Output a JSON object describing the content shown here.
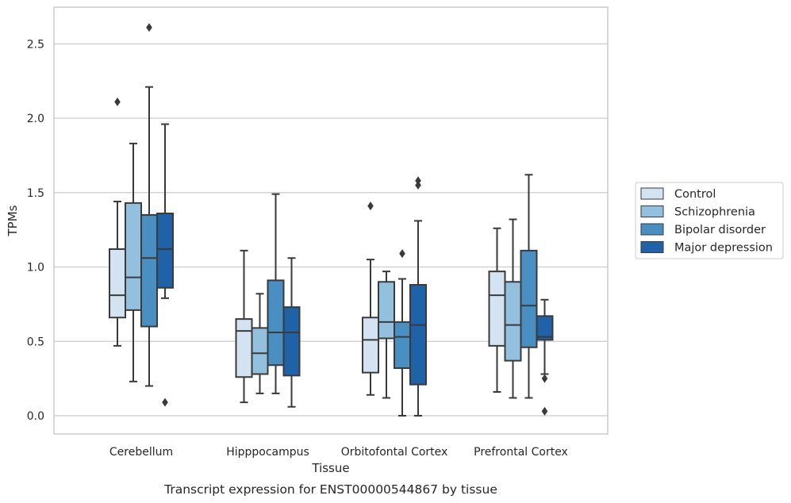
{
  "caption": "Transcript expression for ENST00000544867 by tissue",
  "chart_data": {
    "type": "box",
    "xlabel": "Tissue",
    "ylabel": "TPMs",
    "ylim": [
      -0.13,
      2.75
    ],
    "yticks": [
      0.0,
      0.5,
      1.0,
      1.5,
      2.0,
      2.5
    ],
    "ytick_labels": [
      "0.0",
      "0.5",
      "1.0",
      "1.5",
      "2.0",
      "2.5"
    ],
    "grid": "horizontal",
    "legend_position": "right",
    "categories": [
      "Cerebellum",
      "Hipppocampus",
      "Orbitofontal Cortex",
      "Prefrontal Cortex"
    ],
    "series": [
      {
        "name": "Control",
        "color": "#d4e3f1",
        "boxes": [
          {
            "whislo": 0.47,
            "q1": 0.66,
            "med": 0.81,
            "q3": 1.12,
            "whishi": 1.44,
            "fliers": [
              2.11
            ]
          },
          {
            "whislo": 0.09,
            "q1": 0.26,
            "med": 0.57,
            "q3": 0.65,
            "whishi": 1.11,
            "fliers": []
          },
          {
            "whislo": 0.14,
            "q1": 0.29,
            "med": 0.51,
            "q3": 0.66,
            "whishi": 1.05,
            "fliers": [
              1.41
            ]
          },
          {
            "whislo": 0.16,
            "q1": 0.47,
            "med": 0.81,
            "q3": 0.97,
            "whishi": 1.26,
            "fliers": []
          }
        ]
      },
      {
        "name": "Schizophrenia",
        "color": "#93c0de",
        "boxes": [
          {
            "whislo": 0.23,
            "q1": 0.71,
            "med": 0.93,
            "q3": 1.43,
            "whishi": 1.83,
            "fliers": []
          },
          {
            "whislo": 0.15,
            "q1": 0.28,
            "med": 0.42,
            "q3": 0.59,
            "whishi": 0.82,
            "fliers": []
          },
          {
            "whislo": 0.12,
            "q1": 0.52,
            "med": 0.63,
            "q3": 0.9,
            "whishi": 0.97,
            "fliers": []
          },
          {
            "whislo": 0.12,
            "q1": 0.37,
            "med": 0.61,
            "q3": 0.9,
            "whishi": 1.32,
            "fliers": []
          }
        ]
      },
      {
        "name": "Bipolar disorder",
        "color": "#4a8fc1",
        "boxes": [
          {
            "whislo": 0.2,
            "q1": 0.6,
            "med": 1.06,
            "q3": 1.35,
            "whishi": 2.21,
            "fliers": [
              2.61
            ]
          },
          {
            "whislo": 0.15,
            "q1": 0.34,
            "med": 0.56,
            "q3": 0.91,
            "whishi": 1.49,
            "fliers": []
          },
          {
            "whislo": 0.0,
            "q1": 0.32,
            "med": 0.53,
            "q3": 0.63,
            "whishi": 0.92,
            "fliers": [
              1.09
            ]
          },
          {
            "whislo": 0.12,
            "q1": 0.46,
            "med": 0.74,
            "q3": 1.11,
            "whishi": 1.62,
            "fliers": []
          }
        ]
      },
      {
        "name": "Major depression",
        "color": "#2062a8",
        "boxes": [
          {
            "whislo": 0.79,
            "q1": 0.86,
            "med": 1.12,
            "q3": 1.36,
            "whishi": 1.96,
            "fliers": [
              0.09
            ]
          },
          {
            "whislo": 0.06,
            "q1": 0.27,
            "med": 0.56,
            "q3": 0.73,
            "whishi": 1.06,
            "fliers": []
          },
          {
            "whislo": 0.0,
            "q1": 0.21,
            "med": 0.61,
            "q3": 0.88,
            "whishi": 1.31,
            "fliers": [
              1.55,
              1.58
            ]
          },
          {
            "whislo": 0.28,
            "q1": 0.51,
            "med": 0.53,
            "q3": 0.67,
            "whishi": 0.78,
            "fliers": [
              0.25,
              0.03
            ]
          }
        ]
      }
    ]
  }
}
